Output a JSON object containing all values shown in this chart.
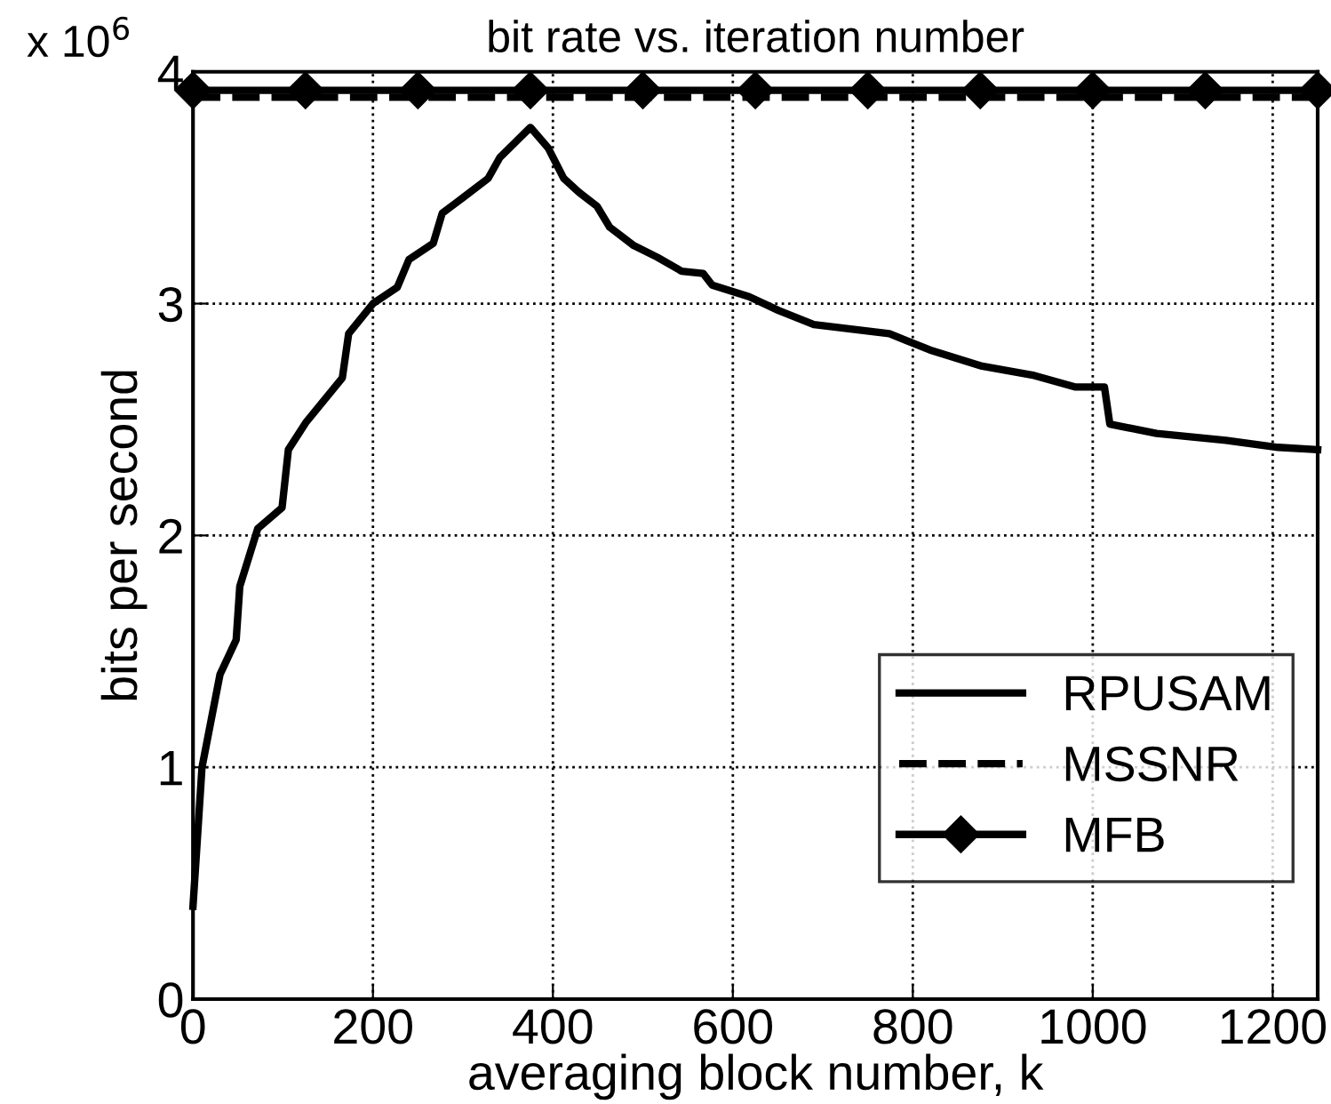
{
  "chart_data": {
    "type": "line",
    "title": "bit rate vs. iteration number",
    "xlabel": "averaging block number, k",
    "ylabel": "bits per second",
    "annotations": [
      "x 10$^{6}$"
    ],
    "xlim": [
      0,
      1250
    ],
    "xticks": [
      0,
      200,
      400,
      600,
      800,
      1000,
      1200
    ],
    "ylim": [
      0,
      4
    ],
    "yticks": [
      0,
      1,
      2,
      3,
      4
    ],
    "grid": true,
    "legend": "bottom right",
    "series": [
      {
        "name": "RPUSAM",
        "color": "#000000",
        "line_style": "solid",
        "marker": "none",
        "x": [
          0,
          5,
          10,
          20,
          30,
          48,
          52,
          72,
          99,
          106,
          126,
          166,
          173,
          200,
          227,
          240,
          267,
          277,
          301,
          328,
          341,
          375,
          395,
          412,
          429,
          449,
          463,
          490,
          516,
          543,
          567,
          577,
          618,
          651,
          664,
          690,
          774,
          819,
          877,
          935,
          981,
          1013,
          1019,
          1071,
          1148,
          1206,
          1250
        ],
        "values": [
          0.4,
          0.7,
          1.0,
          1.2,
          1.4,
          1.55,
          1.78,
          2.03,
          2.12,
          2.37,
          2.49,
          2.68,
          2.87,
          3.0,
          3.07,
          3.19,
          3.26,
          3.39,
          3.46,
          3.54,
          3.63,
          3.76,
          3.67,
          3.54,
          3.48,
          3.42,
          3.33,
          3.25,
          3.2,
          3.14,
          3.13,
          3.08,
          3.03,
          2.97,
          2.95,
          2.91,
          2.87,
          2.8,
          2.73,
          2.69,
          2.64,
          2.64,
          2.48,
          2.44,
          2.41,
          2.38,
          2.37
        ]
      },
      {
        "name": "MSSNR",
        "color": "#000000",
        "line_style": "dashed",
        "marker": "none",
        "x": [
          0,
          1250
        ],
        "values": [
          3.89,
          3.89
        ]
      },
      {
        "name": "MFB",
        "color": "#000000",
        "line_style": "solid",
        "marker": "diamond",
        "x": [
          0,
          125,
          250,
          375,
          500,
          625,
          750,
          875,
          1000,
          1125,
          1250
        ],
        "values": [
          3.92,
          3.92,
          3.92,
          3.92,
          3.92,
          3.92,
          3.92,
          3.92,
          3.92,
          3.92,
          3.92
        ]
      }
    ]
  }
}
